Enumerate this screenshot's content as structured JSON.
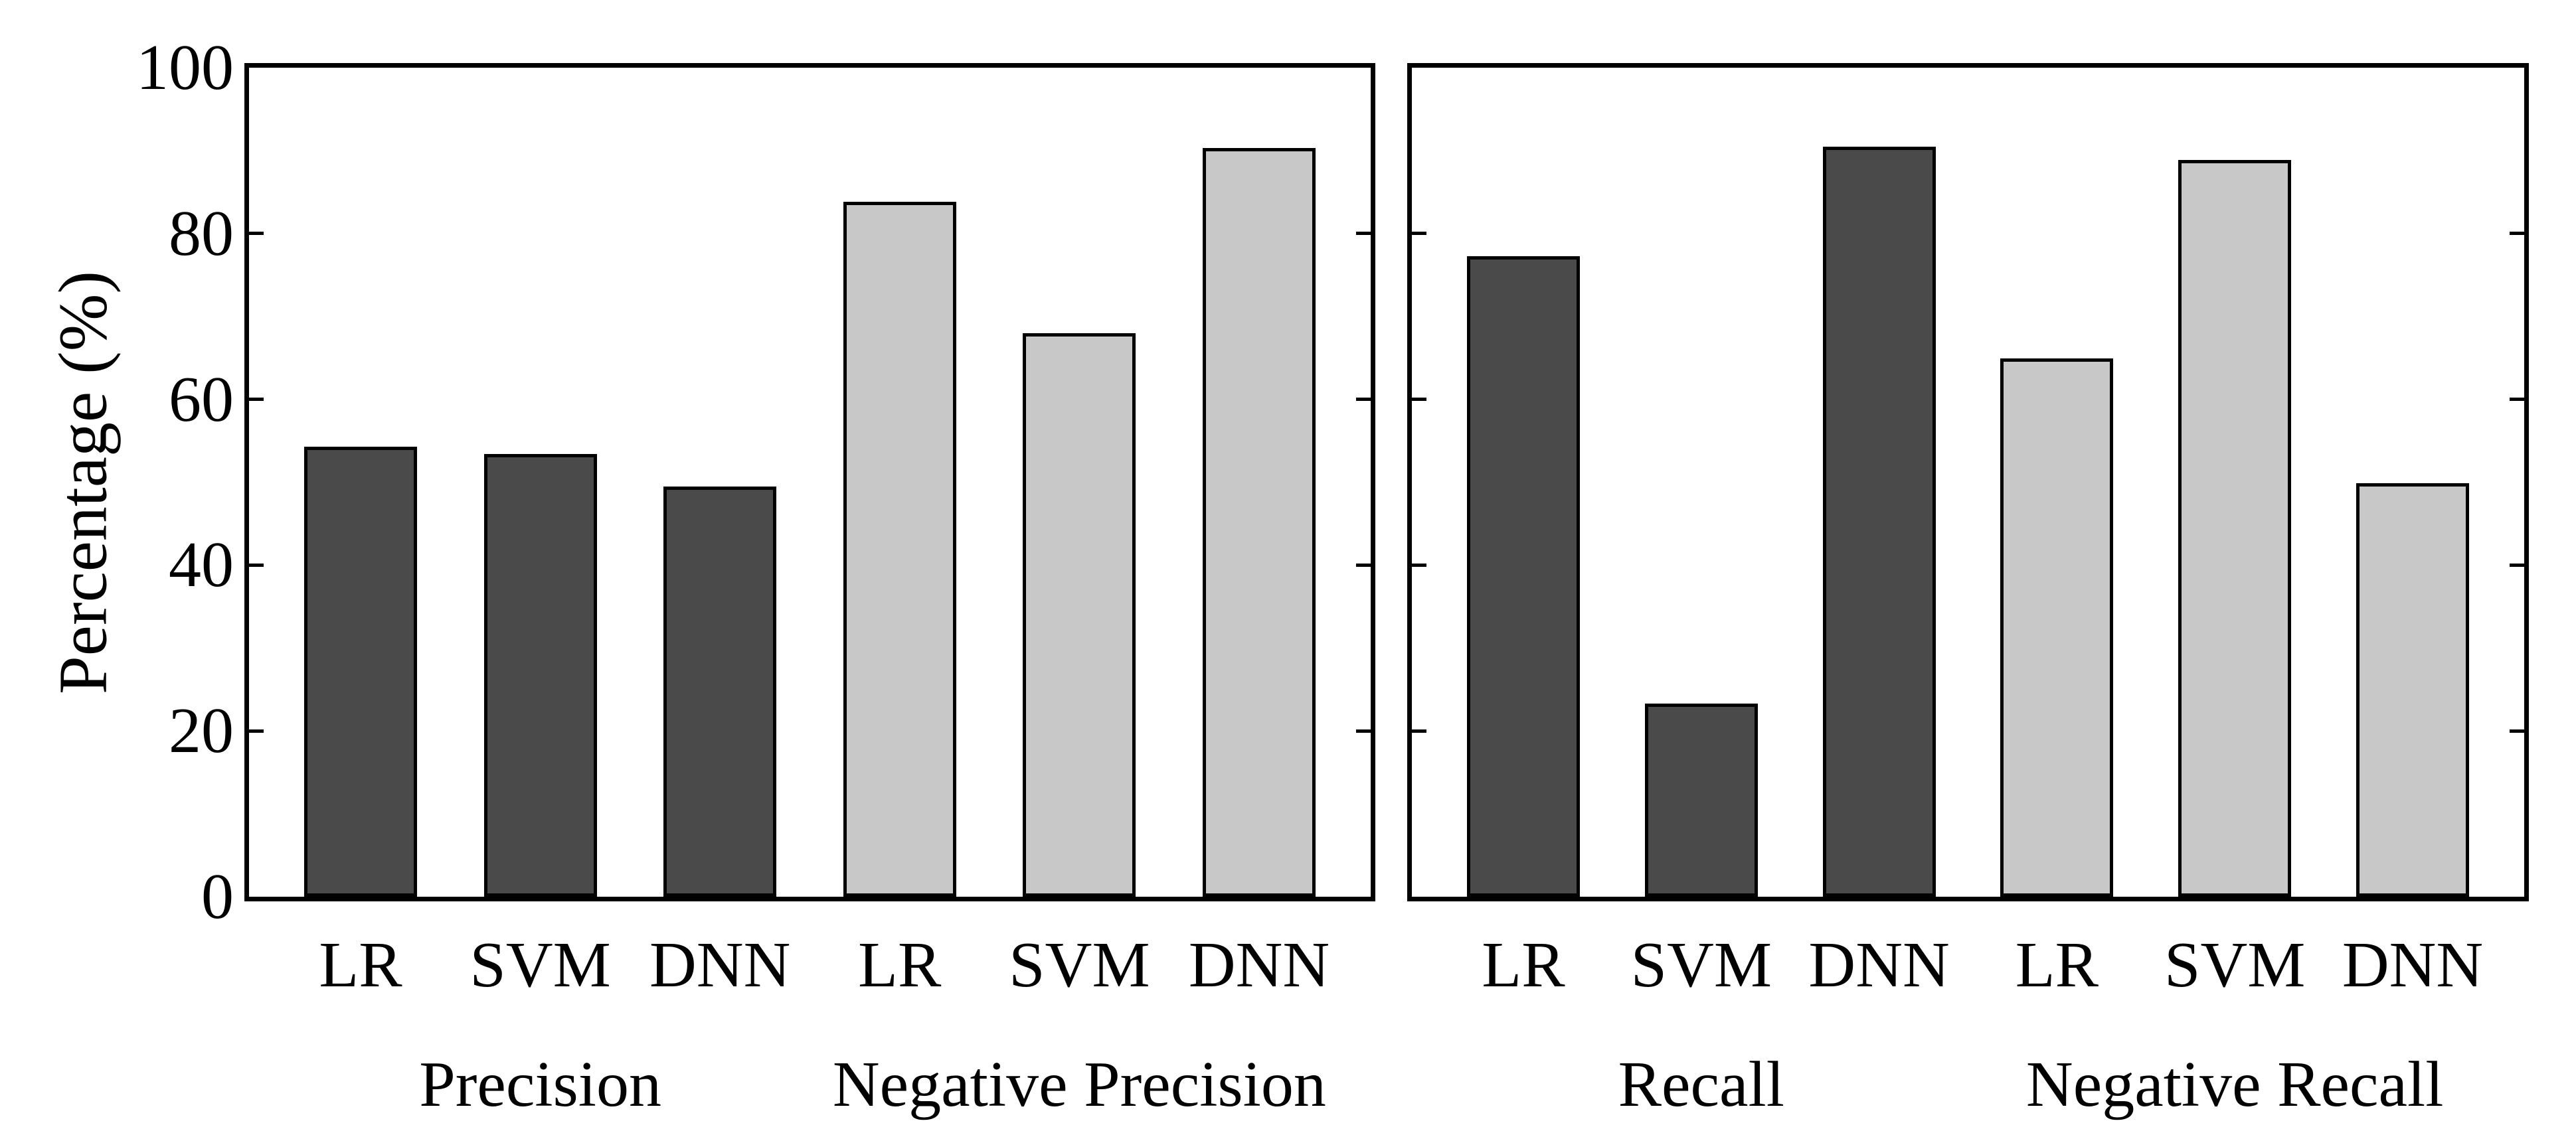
{
  "chart_data": {
    "type": "bar",
    "title": "",
    "ylabel": "Percentage (%)",
    "ylim": [
      0,
      100
    ],
    "yticks": [
      0,
      20,
      40,
      60,
      80,
      100
    ],
    "ytick_labels": [
      "0",
      "20",
      "40",
      "60",
      "80",
      "100"
    ],
    "grid": false,
    "legend": null,
    "tick_direction": "in",
    "colors": {
      "dark_bar": "#4a4a4a",
      "light_bar": "#c8c8c8",
      "edge": "#000000",
      "background": "#ffffff"
    },
    "panels": [
      {
        "name": "left-panel",
        "groups": [
          {
            "label": "Precision",
            "shade": "dark_bar",
            "categories": [
              "LR",
              "SVM",
              "DNN"
            ],
            "values": [
              54.3,
              53.4,
              49.5
            ]
          },
          {
            "label": "Negative Precision",
            "shade": "light_bar",
            "categories": [
              "LR",
              "SVM",
              "DNN"
            ],
            "values": [
              83.8,
              68.0,
              90.3
            ]
          }
        ]
      },
      {
        "name": "right-panel",
        "groups": [
          {
            "label": "Recall",
            "shade": "dark_bar",
            "categories": [
              "LR",
              "SVM",
              "DNN"
            ],
            "values": [
              77.3,
              23.3,
              90.5
            ]
          },
          {
            "label": "Negative Recall",
            "shade": "light_bar",
            "categories": [
              "LR",
              "SVM",
              "DNN"
            ],
            "values": [
              64.9,
              88.9,
              49.9
            ]
          }
        ]
      }
    ]
  }
}
